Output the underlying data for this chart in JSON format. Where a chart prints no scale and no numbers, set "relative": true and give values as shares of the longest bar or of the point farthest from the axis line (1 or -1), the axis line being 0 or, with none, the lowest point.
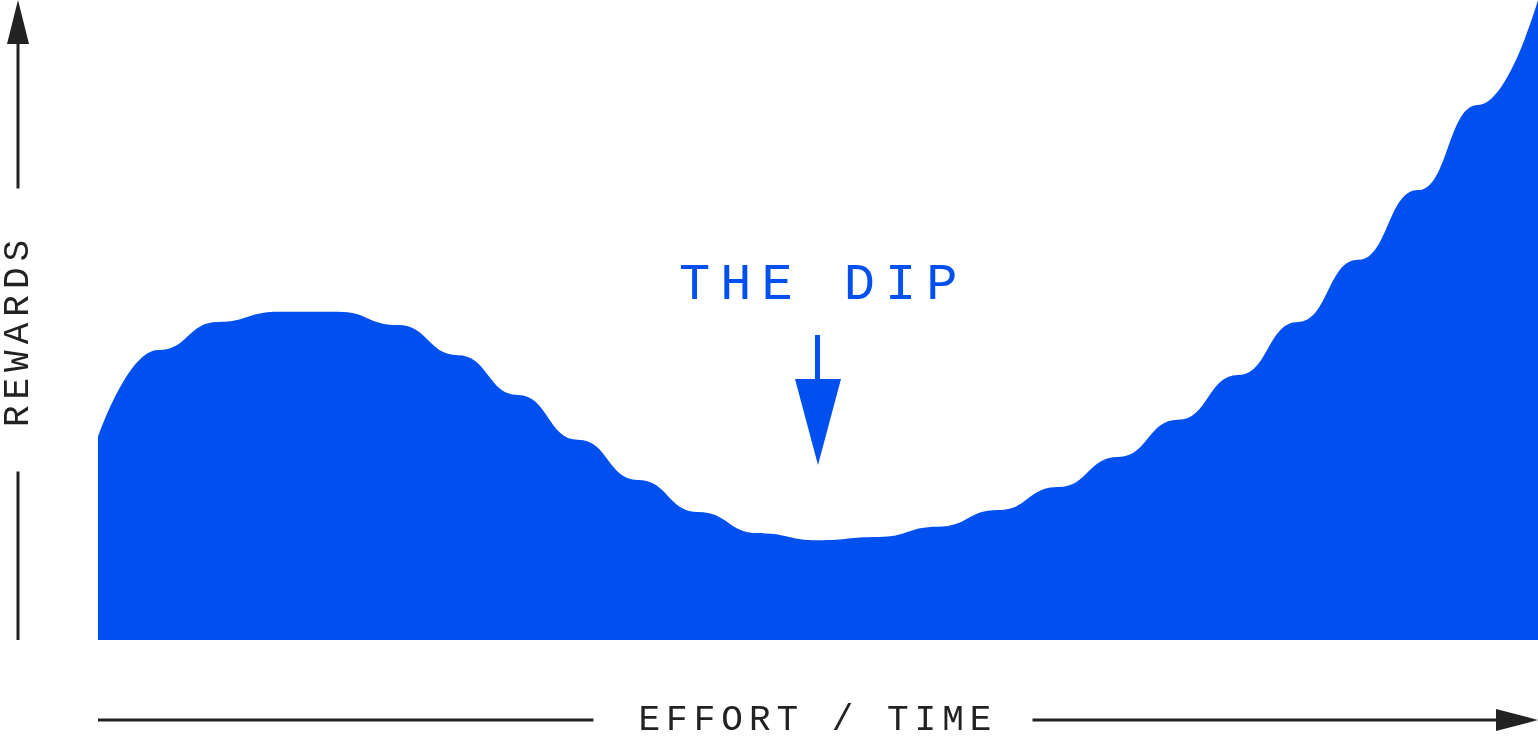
{
  "chart_data": {
    "type": "area",
    "relative": true,
    "xlabel": "EFFORT / TIME",
    "ylabel": "REWARDS",
    "annotations": [
      "THE DIP"
    ],
    "color": "#0050ef",
    "categories": [
      null,
      null,
      null,
      null,
      null,
      null,
      null,
      null,
      null,
      null,
      null,
      null,
      null,
      null,
      null,
      null,
      null,
      null,
      null,
      null,
      null,
      null,
      null,
      null,
      null
    ],
    "values": [
      0.317,
      0.453,
      0.497,
      0.513,
      0.513,
      0.492,
      0.445,
      0.383,
      0.313,
      0.25,
      0.2,
      0.167,
      0.156,
      0.161,
      0.177,
      0.203,
      0.239,
      0.286,
      0.344,
      0.414,
      0.497,
      0.594,
      0.703,
      0.836,
      1
    ]
  }
}
